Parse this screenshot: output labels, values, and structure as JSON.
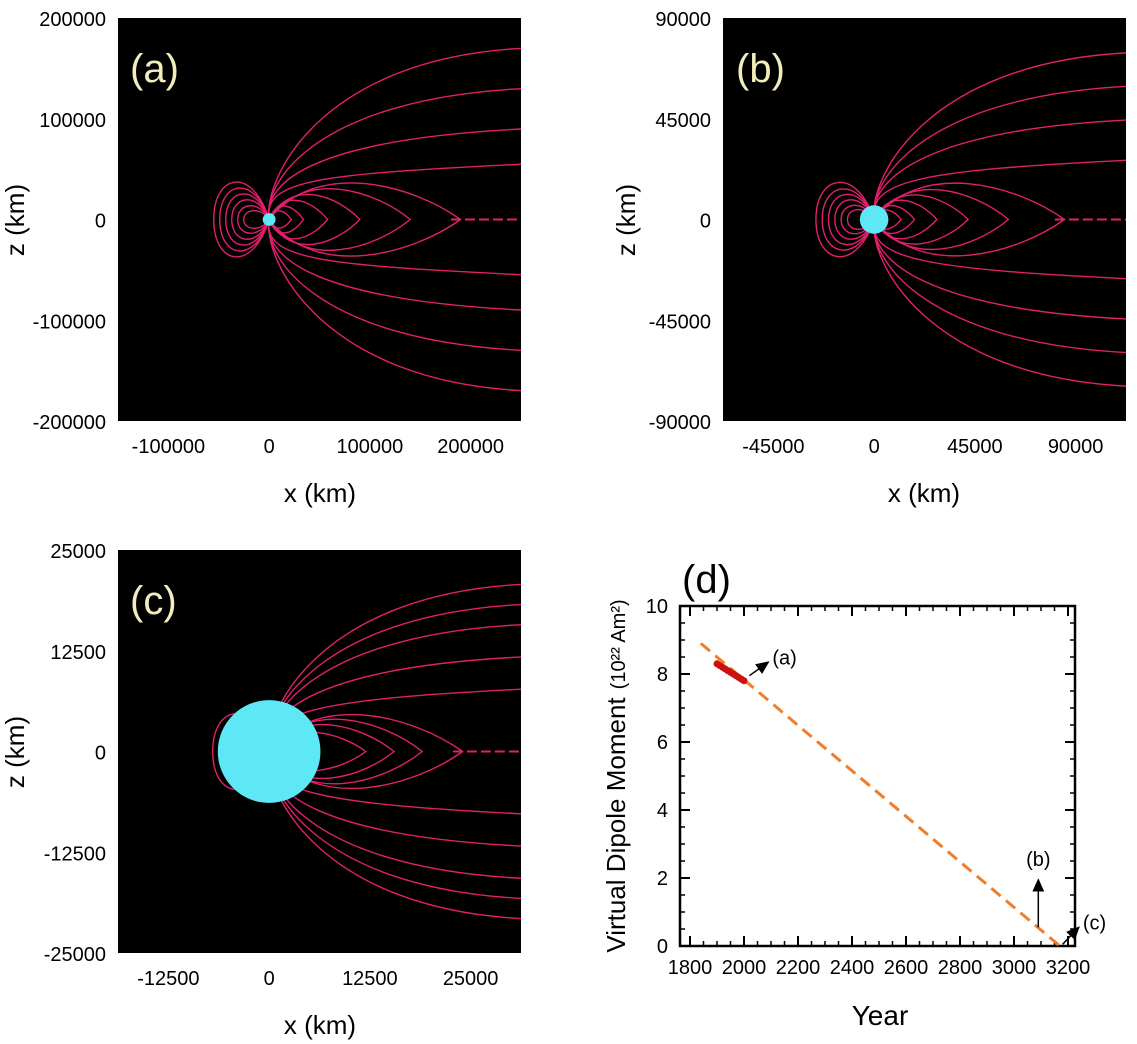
{
  "colors": {
    "panel_bg": "#000000",
    "field_line": "#e0206a",
    "earth": "#5ee8f5",
    "panel_label": "#f2eebc",
    "trend": "#f07d2a",
    "data_points": "#cc1111"
  },
  "chart_data": [
    {
      "type": "line",
      "panel_label": "(a)",
      "xlabel": "x (km)",
      "ylabel": "z (km)",
      "xlim": [
        -150000,
        250000
      ],
      "ylim": [
        -200000,
        200000
      ],
      "x_tick_values": [
        -100000,
        0,
        100000,
        200000
      ],
      "x_tick_labels": [
        "-100000",
        "0",
        "100000",
        "200000"
      ],
      "y_tick_values": [
        -200000,
        -100000,
        0,
        100000,
        200000
      ],
      "y_tick_labels": [
        "-200000",
        "-100000",
        "0",
        "100000",
        "200000"
      ],
      "earth_radius": 6371,
      "closed_loop_extents": [
        22000,
        34000,
        58000,
        90000,
        140000,
        190000
      ],
      "closed_loop_heights": [
        9000,
        14000,
        20000,
        26000,
        32000,
        38000
      ],
      "dayside_extent": -55000,
      "open_line_tail_heights": [
        45000,
        80000,
        120000,
        160000
      ]
    },
    {
      "type": "line",
      "panel_label": "(b)",
      "xlabel": "x (km)",
      "ylabel": "z (km)",
      "xlim": [
        -67500,
        112500
      ],
      "ylim": [
        -90000,
        90000
      ],
      "x_tick_values": [
        -45000,
        0,
        45000,
        90000
      ],
      "x_tick_labels": [
        "-45000",
        "0",
        "45000",
        "90000"
      ],
      "y_tick_values": [
        -90000,
        -45000,
        0,
        45000,
        90000
      ],
      "y_tick_labels": [
        "-90000",
        "-45000",
        "0",
        "45000",
        "90000"
      ],
      "earth_radius": 6371,
      "closed_loop_extents": [
        12000,
        18000,
        28000,
        42000,
        60000,
        85000
      ],
      "closed_loop_heights": [
        4500,
        6500,
        9000,
        11500,
        14000,
        17000
      ],
      "dayside_extent": -26000,
      "open_line_tail_heights": [
        22000,
        40000,
        55000,
        70000
      ]
    },
    {
      "type": "line",
      "panel_label": "(c)",
      "xlabel": "x (km)",
      "ylabel": "z (km)",
      "xlim": [
        -18750,
        31250
      ],
      "ylim": [
        -25000,
        25000
      ],
      "x_tick_values": [
        -12500,
        0,
        12500,
        25000
      ],
      "x_tick_labels": [
        "-12500",
        "0",
        "12500",
        "25000"
      ],
      "y_tick_values": [
        -25000,
        -12500,
        0,
        12500,
        25000
      ],
      "y_tick_labels": [
        "-25000",
        "-12500",
        "0",
        "12500",
        "25000"
      ],
      "earth_radius": 6371,
      "closed_loop_extents": [
        12000,
        15500,
        19000,
        24000
      ],
      "closed_loop_heights": [
        2500,
        3500,
        4200,
        4800
      ],
      "dayside_extent": -7000,
      "open_line_tail_heights": [
        6500,
        10500,
        14500,
        17000,
        19500
      ]
    },
    {
      "type": "line",
      "panel_label": "(d)",
      "xlabel": "Year",
      "ylabel": "Virtual Dipole Moment",
      "ylabel_unit": "(10²² Am²)",
      "xlim": [
        1800,
        3200
      ],
      "ylim": [
        0,
        10
      ],
      "x_tick_labels": [
        "1800",
        "2000",
        "2200",
        "2400",
        "2600",
        "2800",
        "3000",
        "3200"
      ],
      "y_tick_labels": [
        "0",
        "2",
        "4",
        "6",
        "8",
        "10"
      ],
      "series": [
        {
          "style": "dashed-trend",
          "x": [
            1840,
            3170
          ],
          "y": [
            8.9,
            0.0
          ]
        },
        {
          "style": "observations",
          "x": [
            1900,
            1910,
            1920,
            1930,
            1940,
            1950,
            1960,
            1970,
            1980,
            1990,
            2000
          ],
          "y": [
            8.3,
            8.25,
            8.2,
            8.15,
            8.1,
            8.05,
            8.0,
            7.95,
            7.9,
            7.85,
            7.8
          ]
        }
      ],
      "annotations": [
        {
          "text": "(a)",
          "x_data": 2000,
          "y_data": 7.85,
          "from": [
            2020,
            7.95
          ],
          "to": [
            2090,
            8.35
          ],
          "lx": 2105,
          "ly": 8.4
        },
        {
          "text": "(b)",
          "x_data": 3090,
          "y_data": 0.8,
          "from": [
            3090,
            0.55
          ],
          "to": [
            3090,
            1.95
          ],
          "lx": 3090,
          "ly": 2.35
        },
        {
          "text": "(c)",
          "x_data": 3170,
          "y_data": 0.0,
          "from": [
            3180,
            0.05
          ],
          "to": [
            3240,
            0.55
          ],
          "lx": 3255,
          "ly": 0.6
        }
      ]
    }
  ]
}
